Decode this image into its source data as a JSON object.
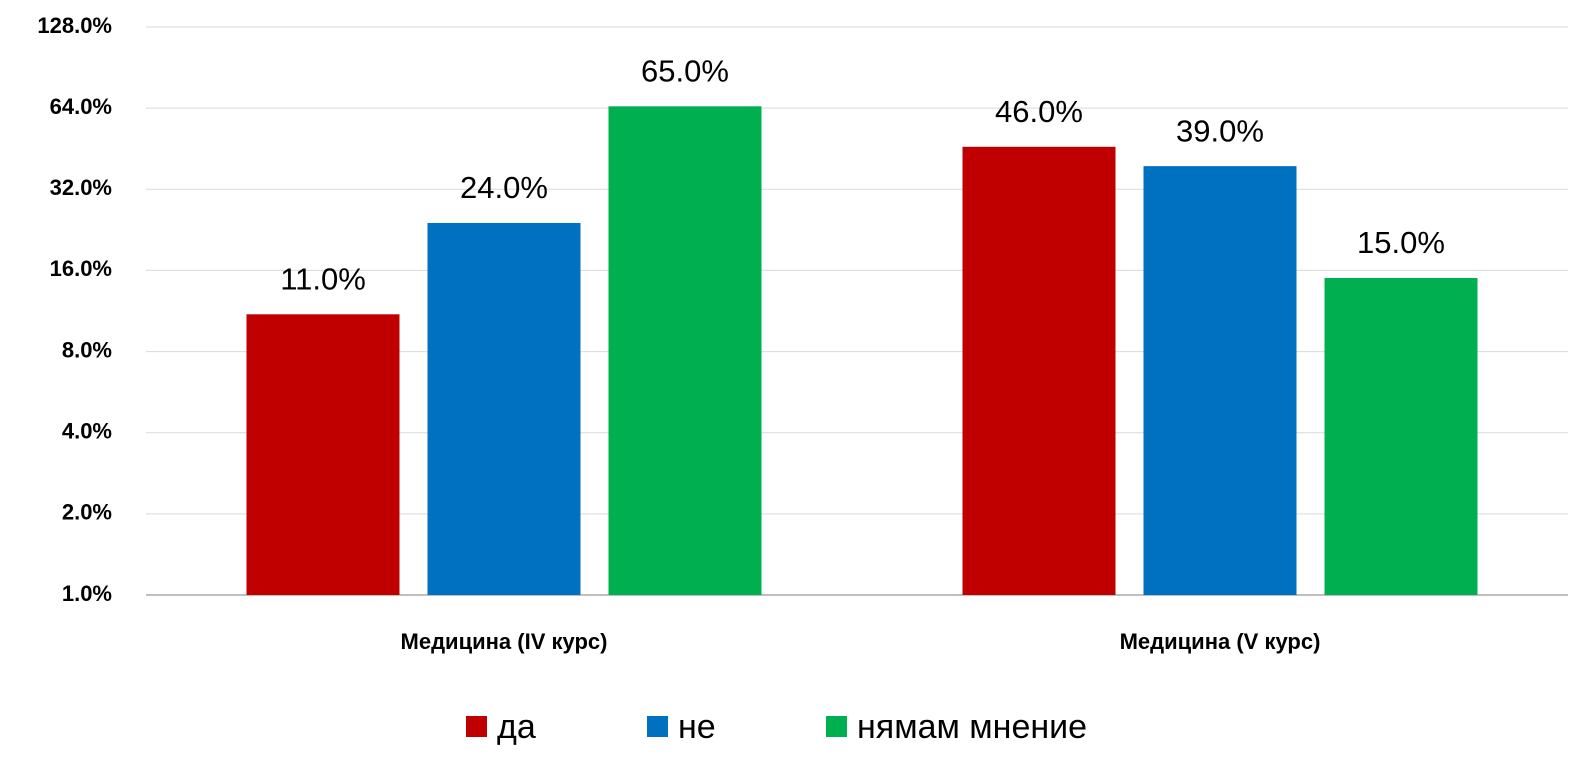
{
  "chart_data": {
    "type": "bar",
    "categories": [
      "Медицина (IV курс)",
      "Медицина (V курс)"
    ],
    "series": [
      {
        "name": "да",
        "color": "#c00000",
        "values": [
          11,
          46
        ],
        "value_labels": [
          "11.0%",
          "46.0%"
        ]
      },
      {
        "name": "не",
        "color": "#0070c0",
        "values": [
          24,
          39
        ],
        "value_labels": [
          "24.0%",
          "39.0%"
        ]
      },
      {
        "name": "нямам мнение",
        "color": "#00b050",
        "values": [
          65,
          15
        ],
        "value_labels": [
          "65.0%",
          "15.0%"
        ]
      }
    ],
    "ylim": [
      1,
      128
    ],
    "log_scale": true,
    "yticks": [
      {
        "value": 1,
        "label": "1.0%"
      },
      {
        "value": 2,
        "label": "2.0%"
      },
      {
        "value": 4,
        "label": "4.0%"
      },
      {
        "value": 8,
        "label": "8.0%"
      },
      {
        "value": 16,
        "label": "16.0%"
      },
      {
        "value": 32,
        "label": "32.0%"
      },
      {
        "value": 64,
        "label": "64.0%"
      },
      {
        "value": 128,
        "label": "128.0%"
      }
    ],
    "grid": true,
    "legend": "bottom"
  }
}
